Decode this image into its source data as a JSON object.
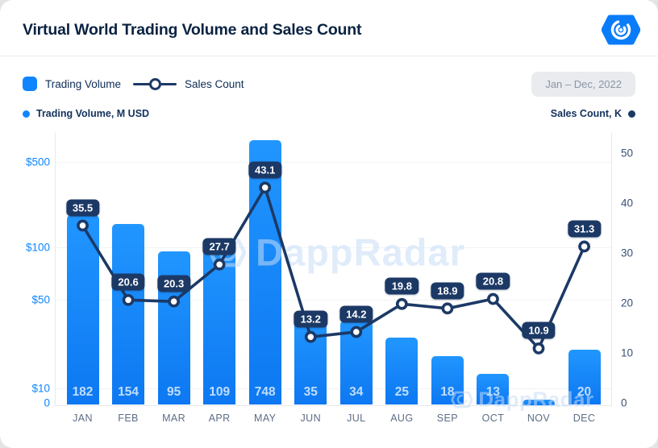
{
  "header": {
    "title": "Virtual World Trading Volume and Sales Count",
    "logo": "dappradar-logo"
  },
  "legend": {
    "volume_label": "Trading Volume",
    "sales_label": "Sales Count",
    "period": "Jan – Dec, 2022"
  },
  "axes": {
    "left_caption": "Trading Volume, M USD",
    "right_caption": "Sales Count, K"
  },
  "watermark": {
    "center": "DappRadar",
    "corner": "DappRadar"
  },
  "chart_data": {
    "type": "bar+line",
    "categories": [
      "JAN",
      "FEB",
      "MAR",
      "APR",
      "MAY",
      "JUN",
      "JUL",
      "AUG",
      "SEP",
      "OCT",
      "NOV",
      "DEC"
    ],
    "series": [
      {
        "name": "Trading Volume",
        "type": "bar",
        "axis": "left",
        "unit": "M USD",
        "values": [
          182,
          154,
          95,
          109,
          748,
          35,
          34,
          25,
          18,
          13,
          null,
          20
        ]
      },
      {
        "name": "Sales Count",
        "type": "line",
        "axis": "right",
        "unit": "K",
        "values": [
          35.5,
          20.6,
          20.3,
          27.7,
          43.1,
          13.2,
          14.2,
          19.8,
          18.9,
          20.8,
          10.9,
          31.3
        ]
      }
    ],
    "left_axis": {
      "scale": "log",
      "ticks": [
        {
          "label": "$500",
          "value": 500
        },
        {
          "label": "$100",
          "value": 100
        },
        {
          "label": "$50",
          "value": 50
        },
        {
          "label": "$10",
          "value": 10
        },
        {
          "label": "0",
          "value": 0
        }
      ]
    },
    "right_axis": {
      "scale": "linear",
      "range": [
        0,
        50
      ],
      "ticks": [
        {
          "label": "50",
          "value": 50
        },
        {
          "label": "40",
          "value": 40
        },
        {
          "label": "30",
          "value": 30
        },
        {
          "label": "20",
          "value": 20
        },
        {
          "label": "10",
          "value": 10
        },
        {
          "label": "0",
          "value": 0
        }
      ]
    },
    "grid": "horizontal",
    "legend_position": "top-left",
    "colors": {
      "bar_top": "#2196ff",
      "bar_bottom": "#0d78f2",
      "line": "#1c3966",
      "label_box": "#1c3966",
      "left_tick": "#0f86ff",
      "right_tick": "#3a5174",
      "month": "#5d6c86",
      "accent": "#0f86ff",
      "watermark": "rgba(199,221,246,0.55)"
    }
  }
}
